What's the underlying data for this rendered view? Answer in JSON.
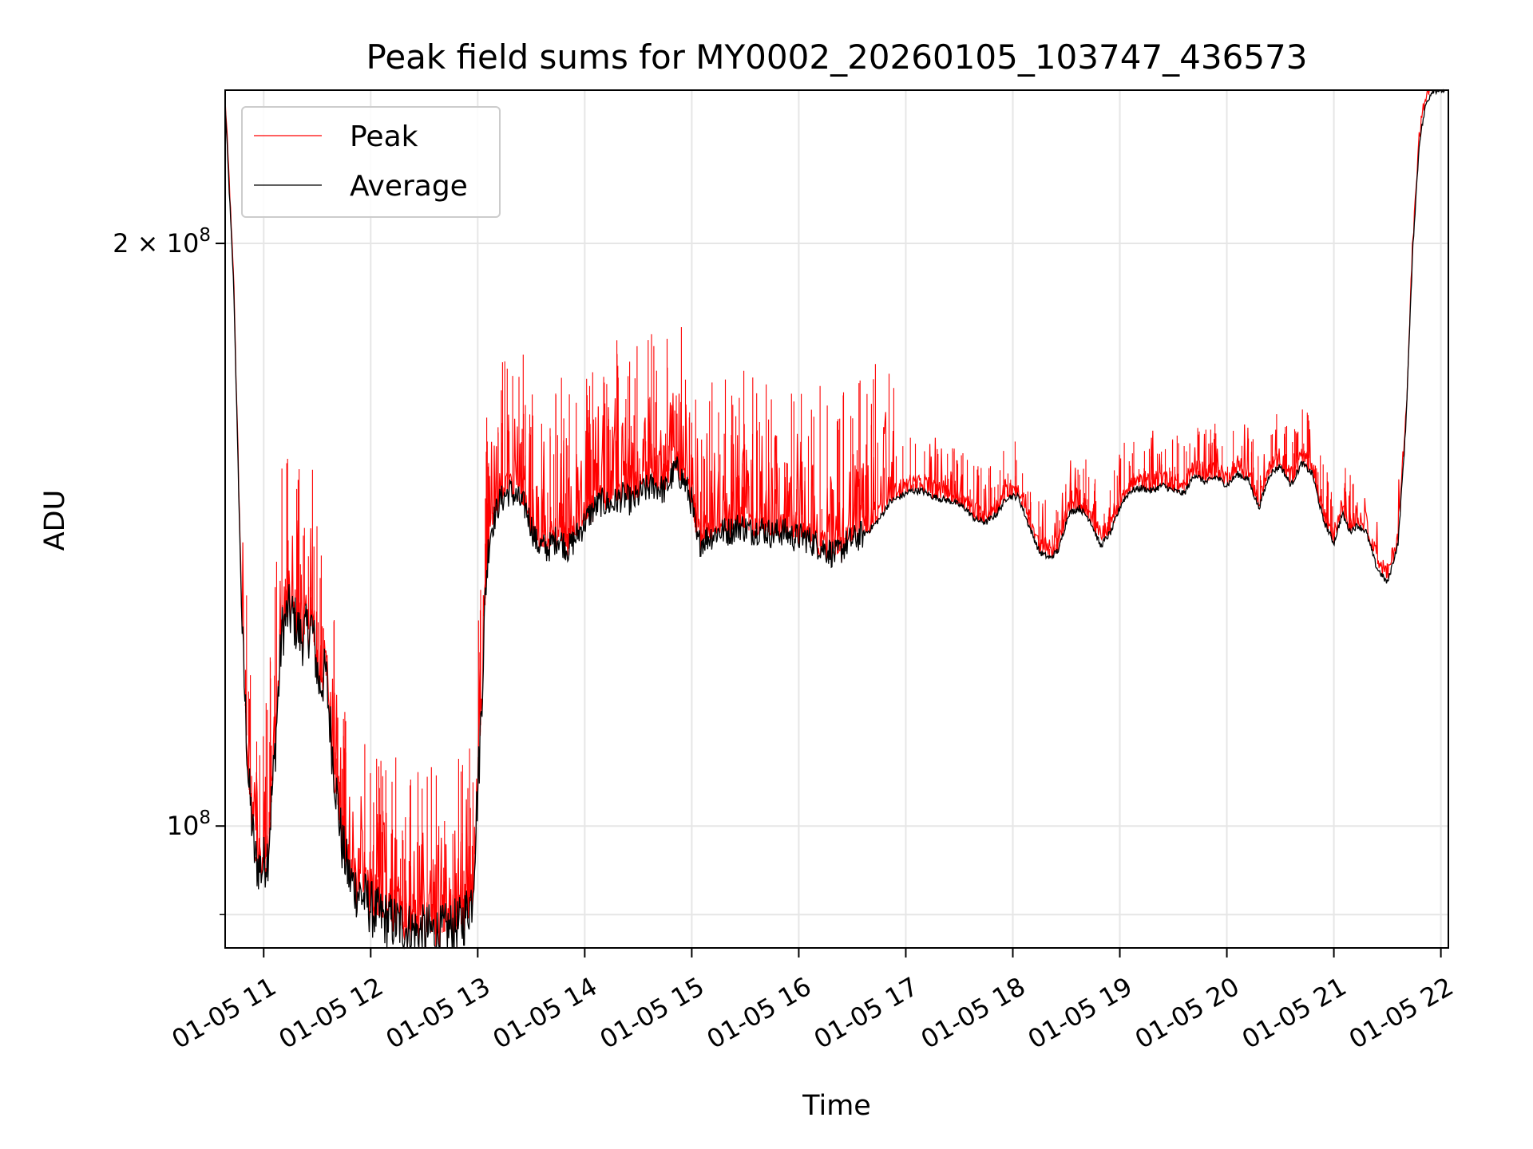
{
  "chart_data": {
    "type": "line",
    "title": "Peak field sums for MY0002_20260105_103747_436573",
    "xlabel": "Time",
    "ylabel": "ADU",
    "yscale": "log",
    "xlim": [
      10.64,
      22.07
    ],
    "ylim": [
      86500000.0,
      240000000.0
    ],
    "x_ticks": [
      {
        "value": 11,
        "label": "01-05 11"
      },
      {
        "value": 12,
        "label": "01-05 12"
      },
      {
        "value": 13,
        "label": "01-05 13"
      },
      {
        "value": 14,
        "label": "01-05 14"
      },
      {
        "value": 15,
        "label": "01-05 15"
      },
      {
        "value": 16,
        "label": "01-05 16"
      },
      {
        "value": 17,
        "label": "01-05 17"
      },
      {
        "value": 18,
        "label": "01-05 18"
      },
      {
        "value": 19,
        "label": "01-05 19"
      },
      {
        "value": 20,
        "label": "01-05 20"
      },
      {
        "value": 21,
        "label": "01-05 21"
      },
      {
        "value": 22,
        "label": "01-05 22"
      }
    ],
    "y_major_ticks": [
      {
        "value": 100000000,
        "label_base": "10",
        "label_exp": "8"
      },
      {
        "value": 200000000,
        "label_base": "2 × 10",
        "label_exp": "8"
      }
    ],
    "y_minor_ticks": [
      90000000
    ],
    "grid": true,
    "legend_position": "top-left",
    "series": [
      {
        "name": "Peak",
        "color": "#ff0000",
        "spike_height_factor": 1.12,
        "spike_count": 650
      },
      {
        "name": "Average",
        "color": "#000000",
        "x": [
          10.64,
          10.72,
          10.8,
          10.86,
          10.92,
          10.98,
          11.04,
          11.1,
          11.17,
          11.23,
          11.28,
          11.35,
          11.45,
          11.52,
          11.58,
          11.65,
          11.73,
          11.8,
          11.88,
          11.96,
          12.05,
          12.15,
          12.25,
          12.35,
          12.45,
          12.55,
          12.65,
          12.75,
          12.85,
          12.95,
          13.02,
          13.08,
          13.12,
          13.2,
          13.3,
          13.45,
          13.55,
          13.65,
          13.75,
          13.85,
          13.95,
          14.05,
          14.15,
          14.25,
          14.35,
          14.45,
          14.55,
          14.65,
          14.75,
          14.85,
          14.92,
          15.0,
          15.05,
          15.15,
          15.25,
          15.35,
          15.45,
          15.55,
          15.65,
          15.75,
          15.85,
          15.95,
          16.05,
          16.15,
          16.25,
          16.35,
          16.45,
          16.55,
          16.65,
          16.75,
          16.85,
          16.95,
          17.05,
          17.15,
          17.25,
          17.35,
          17.45,
          17.55,
          17.65,
          17.75,
          17.85,
          17.95,
          18.05,
          18.15,
          18.25,
          18.35,
          18.43,
          18.52,
          18.62,
          18.72,
          18.82,
          18.92,
          19.02,
          19.1,
          19.2,
          19.3,
          19.4,
          19.5,
          19.6,
          19.7,
          19.8,
          19.9,
          20.0,
          20.1,
          20.2,
          20.3,
          20.4,
          20.5,
          20.6,
          20.7,
          20.8,
          20.9,
          21.0,
          21.08,
          21.15,
          21.22,
          21.3,
          21.4,
          21.5,
          21.6,
          21.67,
          21.74,
          21.8,
          21.86,
          21.92,
          21.97,
          22.02,
          22.07
        ],
        "values": [
          236000000,
          190000000,
          125000000,
          105000000,
          96000000,
          95000000,
          97000000,
          108000000,
          126000000,
          129000000,
          128000000,
          125000000,
          127000000,
          118000000,
          120000000,
          108000000,
          98000000,
          94000000,
          92500000,
          91500000,
          90000000,
          89500000,
          89000000,
          88500000,
          88000000,
          88200000,
          88000000,
          88500000,
          89000000,
          92000000,
          110000000,
          135000000,
          142000000,
          147000000,
          149000000,
          146000000,
          140000000,
          139000000,
          141000000,
          139000000,
          142000000,
          145000000,
          147000000,
          146500000,
          148000000,
          147000000,
          149000000,
          150000000,
          149000000,
          153000000,
          151000000,
          147000000,
          140000000,
          141000000,
          142000000,
          142000000,
          143000000,
          142000000,
          142500000,
          141500000,
          142000000,
          141000000,
          141000000,
          140000000,
          139000000,
          138000000,
          140000000,
          141000000,
          142000000,
          144000000,
          147000000,
          148000000,
          149000000,
          149000000,
          148000000,
          147500000,
          147000000,
          146000000,
          144000000,
          143500000,
          145000000,
          148000000,
          148000000,
          143000000,
          138500000,
          137500000,
          139000000,
          145000000,
          146000000,
          144000000,
          139500000,
          142000000,
          147000000,
          149000000,
          149500000,
          149000000,
          150000000,
          149000000,
          148500000,
          152000000,
          150500000,
          151500000,
          150000000,
          152000000,
          151000000,
          146000000,
          152000000,
          153500000,
          150000000,
          154000000,
          152000000,
          144000000,
          140000000,
          145000000,
          142000000,
          143000000,
          142000000,
          136000000,
          133500000,
          140000000,
          160000000,
          200000000,
          226000000,
          236000000,
          240000000,
          240000000,
          240000000,
          240000000
        ]
      }
    ]
  }
}
